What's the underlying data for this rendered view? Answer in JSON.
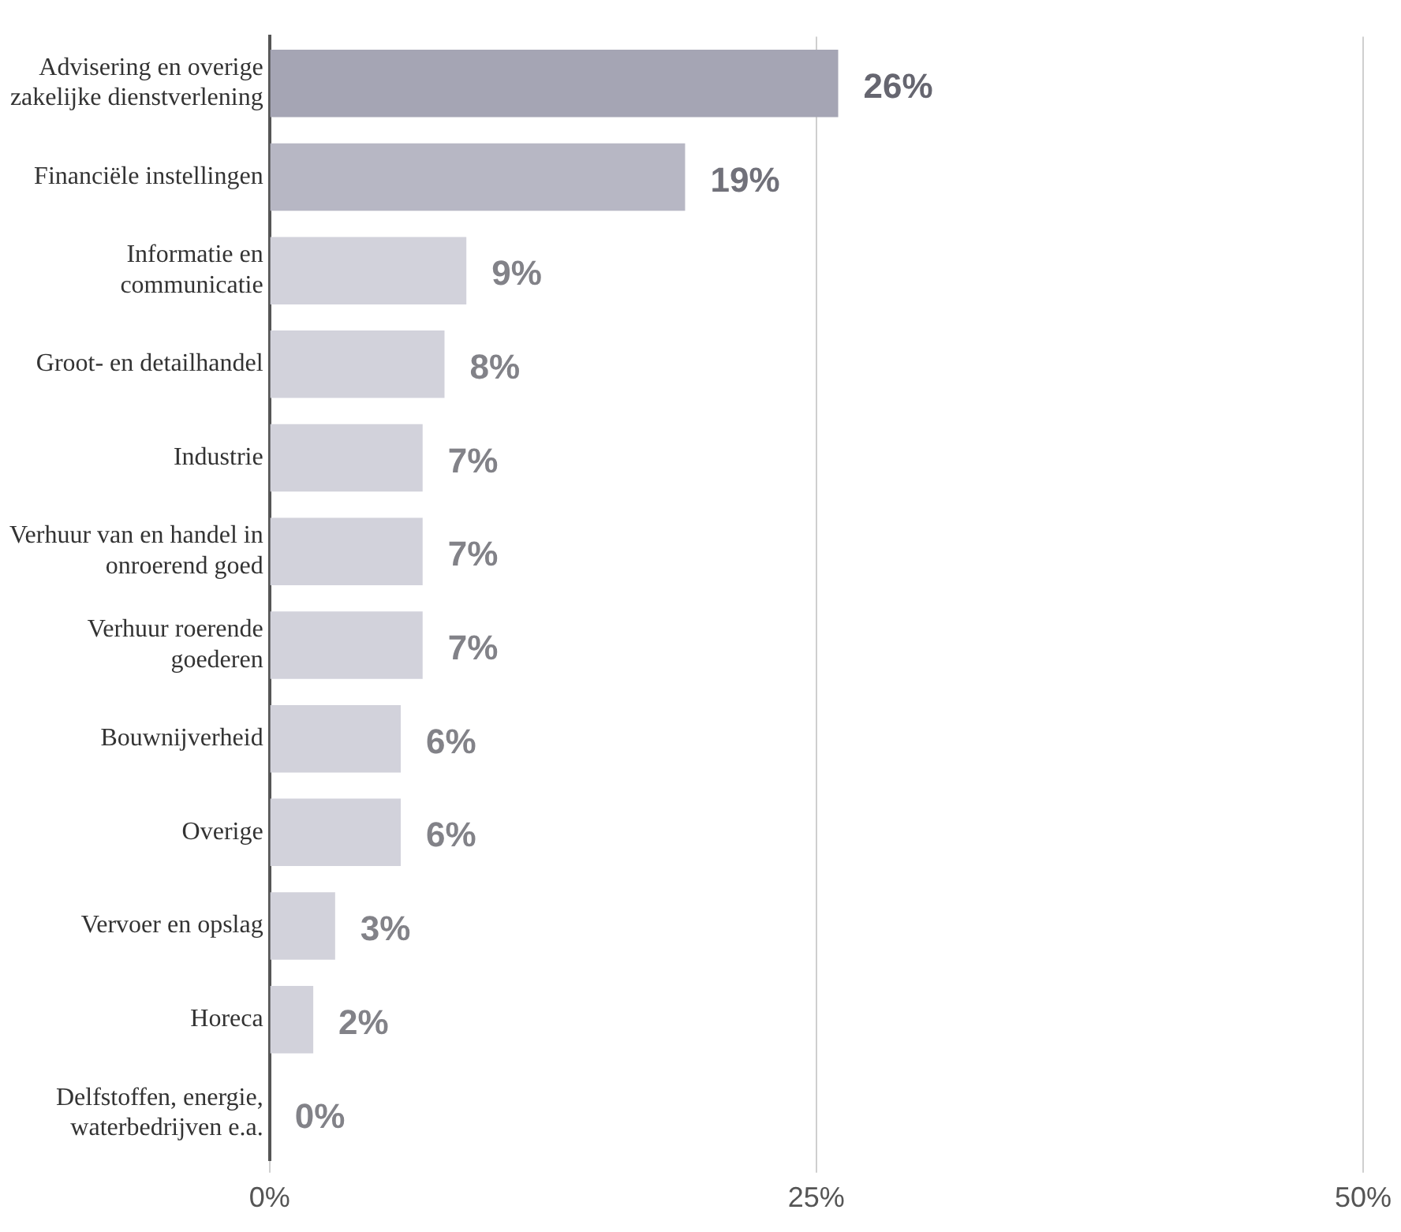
{
  "chart_data": {
    "type": "bar",
    "orientation": "horizontal",
    "categories": [
      "Advisering en overige zakelijke dienstverlening",
      "Financiële instellingen",
      "Informatie en communicatie",
      "Groot- en detailhandel",
      "Industrie",
      "Verhuur van en handel in onroerend goed",
      "Verhuur roerende goederen",
      "Bouwnijverheid",
      "Overige",
      "Vervoer en opslag",
      "Horeca",
      "Delfstoffen, energie, waterbedrijven e.a."
    ],
    "values": [
      26,
      19,
      9,
      8,
      7,
      7,
      7,
      6,
      6,
      3,
      2,
      0
    ],
    "value_labels": [
      "26%",
      "19%",
      "9%",
      "8%",
      "7%",
      "7%",
      "7%",
      "6%",
      "6%",
      "3%",
      "2%",
      "0%"
    ],
    "colors": [
      "#a5a5b4",
      "#b7b7c4",
      "#d2d2db",
      "#d2d2db",
      "#d2d2db",
      "#d2d2db",
      "#d2d2db",
      "#d2d2db",
      "#d2d2db",
      "#d2d2db",
      "#d2d2db",
      "#d2d2db"
    ],
    "xlim": [
      0,
      50
    ],
    "xticks": [
      {
        "value": 0,
        "label": "0%"
      },
      {
        "value": 25,
        "label": "25%"
      },
      {
        "value": 50,
        "label": "50%"
      }
    ],
    "grid": "x",
    "legend": false
  }
}
